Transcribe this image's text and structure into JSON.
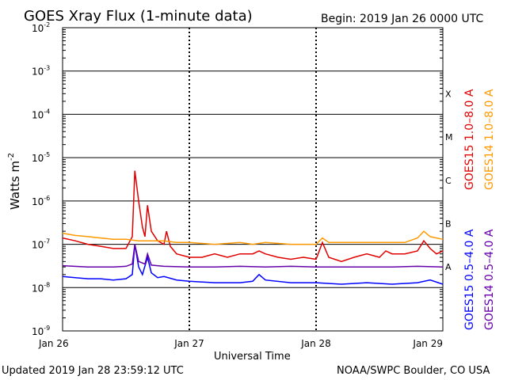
{
  "chart_data": {
    "type": "line",
    "title": "GOES Xray Flux (1-minute data)",
    "begin_text": "Begin:  2019 Jan 26 0000 UTC",
    "xlabel": "Universal Time",
    "ylabel": "Watts m",
    "ylabel_sup": "-2",
    "updated_text": "Updated 2019 Jan 28 23:59:12 UTC",
    "source_text": "NOAA/SWPC Boulder, CO USA",
    "y_scale": "log",
    "ylim": [
      1e-09,
      0.01
    ],
    "xlim": [
      "Jan 26",
      "Jan 29"
    ],
    "grid": true,
    "x_ticks": [
      {
        "label": "Jan 26",
        "day": 0
      },
      {
        "label": "Jan 27",
        "day": 1
      },
      {
        "label": "Jan 28",
        "day": 2
      },
      {
        "label": "Jan 29",
        "day": 3
      }
    ],
    "y_ticks": [
      {
        "base": "10",
        "exp": "-2",
        "value": 0.01
      },
      {
        "base": "10",
        "exp": "-3",
        "value": 0.001
      },
      {
        "base": "10",
        "exp": "-4",
        "value": 0.0001
      },
      {
        "base": "10",
        "exp": "-5",
        "value": 1e-05
      },
      {
        "base": "10",
        "exp": "-6",
        "value": 1e-06
      },
      {
        "base": "10",
        "exp": "-7",
        "value": 1e-07
      },
      {
        "base": "10",
        "exp": "-8",
        "value": 1e-08
      },
      {
        "base": "10",
        "exp": "-9",
        "value": 1e-09
      }
    ],
    "flare_classes": [
      {
        "label": "X",
        "value": 0.0003
      },
      {
        "label": "M",
        "value": 3e-05
      },
      {
        "label": "C",
        "value": 3e-06
      },
      {
        "label": "B",
        "value": 3e-07
      },
      {
        "label": "A",
        "value": 3e-08
      }
    ],
    "legend": [
      {
        "text": "GOES15 1.0–8.0 A",
        "color": "#e00000"
      },
      {
        "text": "GOES14 1.0–8.0 A",
        "color": "#ff9900"
      },
      {
        "text": "GOES15 0.5–4.0 A",
        "color": "#0000ff"
      },
      {
        "text": "GOES14 0.5–4.0 A",
        "color": "#6600aa"
      }
    ],
    "series": [
      {
        "name": "GOES15 1.0–8.0 A",
        "color": "#e00000",
        "x": [
          0,
          0.1,
          0.2,
          0.3,
          0.4,
          0.5,
          0.55,
          0.57,
          0.6,
          0.63,
          0.65,
          0.67,
          0.7,
          0.75,
          0.8,
          0.82,
          0.85,
          0.9,
          1.0,
          1.1,
          1.2,
          1.3,
          1.4,
          1.5,
          1.55,
          1.6,
          1.7,
          1.8,
          1.9,
          2.0,
          2.05,
          2.1,
          2.2,
          2.3,
          2.4,
          2.5,
          2.55,
          2.6,
          2.7,
          2.8,
          2.85,
          2.9,
          2.95,
          3.0
        ],
        "y": [
          1.4e-07,
          1.2e-07,
          1e-07,
          9e-08,
          8e-08,
          8e-08,
          1.5e-07,
          5e-06,
          1e-06,
          2.5e-07,
          1.5e-07,
          8e-07,
          2e-07,
          1.2e-07,
          1e-07,
          2e-07,
          9e-08,
          6e-08,
          5e-08,
          5e-08,
          6e-08,
          5e-08,
          6e-08,
          6e-08,
          7e-08,
          6e-08,
          5e-08,
          4.5e-08,
          5e-08,
          4.5e-08,
          1.1e-07,
          5e-08,
          4e-08,
          5e-08,
          6e-08,
          5e-08,
          7e-08,
          6e-08,
          6e-08,
          7e-08,
          1.2e-07,
          8e-08,
          6e-08,
          7e-08
        ]
      },
      {
        "name": "GOES14 1.0–8.0 A",
        "color": "#ff9900",
        "x": [
          0,
          0.1,
          0.2,
          0.3,
          0.4,
          0.5,
          0.6,
          0.7,
          0.8,
          0.9,
          1.0,
          1.2,
          1.4,
          1.5,
          1.6,
          1.8,
          2.0,
          2.05,
          2.1,
          2.3,
          2.5,
          2.7,
          2.8,
          2.85,
          2.9,
          3.0
        ],
        "y": [
          1.8e-07,
          1.6e-07,
          1.5e-07,
          1.4e-07,
          1.3e-07,
          1.3e-07,
          1.2e-07,
          1.2e-07,
          1.2e-07,
          1.1e-07,
          1.1e-07,
          1e-07,
          1.1e-07,
          1e-07,
          1.1e-07,
          1e-07,
          1e-07,
          1.4e-07,
          1.1e-07,
          1.1e-07,
          1.1e-07,
          1.1e-07,
          1.4e-07,
          2e-07,
          1.5e-07,
          1.3e-07
        ]
      },
      {
        "name": "GOES15 0.5–4.0 A",
        "color": "#0000ff",
        "x": [
          0,
          0.1,
          0.2,
          0.3,
          0.4,
          0.5,
          0.55,
          0.57,
          0.6,
          0.63,
          0.67,
          0.7,
          0.75,
          0.8,
          0.9,
          1.0,
          1.2,
          1.4,
          1.5,
          1.55,
          1.6,
          1.8,
          2.0,
          2.2,
          2.4,
          2.6,
          2.8,
          2.9,
          3.0
        ],
        "y": [
          1.8e-08,
          1.7e-08,
          1.6e-08,
          1.6e-08,
          1.5e-08,
          1.6e-08,
          2e-08,
          1e-07,
          3e-08,
          2e-08,
          5e-08,
          2.2e-08,
          1.7e-08,
          1.8e-08,
          1.5e-08,
          1.4e-08,
          1.3e-08,
          1.3e-08,
          1.4e-08,
          2e-08,
          1.5e-08,
          1.3e-08,
          1.3e-08,
          1.2e-08,
          1.3e-08,
          1.2e-08,
          1.3e-08,
          1.5e-08,
          1.2e-08
        ]
      },
      {
        "name": "GOES14 0.5–4.0 A",
        "color": "#6600aa",
        "x": [
          0,
          0.2,
          0.4,
          0.5,
          0.55,
          0.57,
          0.6,
          0.65,
          0.67,
          0.7,
          0.8,
          1.0,
          1.2,
          1.4,
          1.6,
          1.8,
          2.0,
          2.2,
          2.4,
          2.6,
          2.8,
          3.0
        ],
        "y": [
          3.2e-08,
          3e-08,
          3e-08,
          3.1e-08,
          3.5e-08,
          1e-07,
          4e-08,
          3.5e-08,
          6e-08,
          3.3e-08,
          3.1e-08,
          3e-08,
          3e-08,
          3.1e-08,
          3e-08,
          3.1e-08,
          3e-08,
          3e-08,
          3e-08,
          3e-08,
          3.1e-08,
          3e-08
        ]
      }
    ]
  }
}
